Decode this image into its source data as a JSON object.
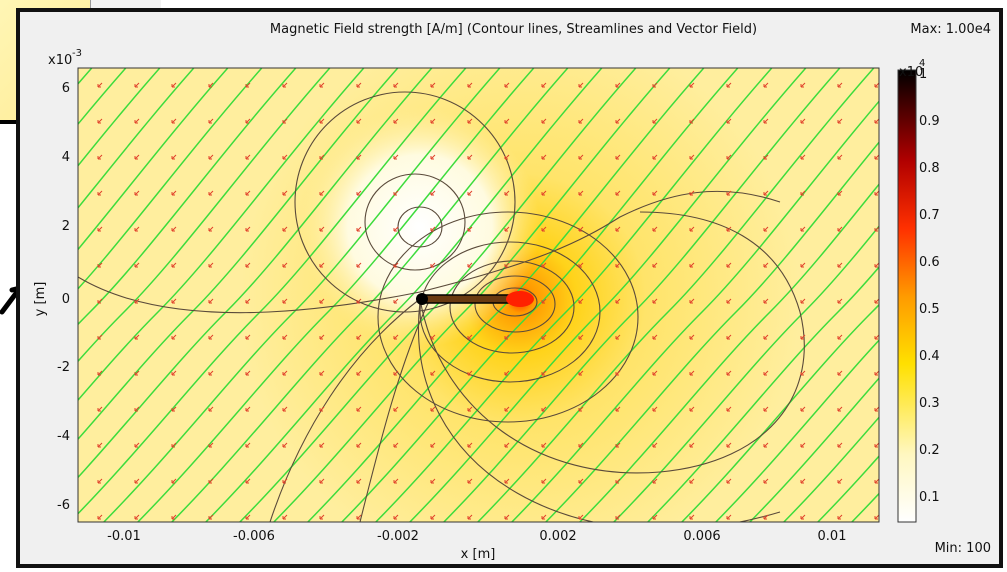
{
  "title": "Magnetic Field strength [A/m] (Contour lines, Streamlines and Vector Field)",
  "max_label": "Max: 1.00e4",
  "min_label": "Min: 100",
  "colorbar": {
    "exponent_base": "x10",
    "exponent_power": "4",
    "ticks": [
      "1",
      "0.9",
      "0.8",
      "0.7",
      "0.6",
      "0.5",
      "0.4",
      "0.3",
      "0.2",
      "0.1"
    ]
  },
  "axes": {
    "xlabel": "x [m]",
    "ylabel": "y [m]",
    "y_exponent_base": "x10",
    "y_exponent_power": "-3",
    "xticks": [
      "-0.01",
      "-0.006",
      "-0.002",
      "0.002",
      "0.006",
      "0.01"
    ],
    "yticks": [
      "6",
      "4",
      "2",
      "0",
      "-2",
      "-4",
      "-6"
    ]
  },
  "colors": {
    "background": "#ffeea0",
    "streamline": "#3ddc3d",
    "contour": "#5a4a3a",
    "arrow": "#e0402a",
    "magnet": "#000000"
  }
}
